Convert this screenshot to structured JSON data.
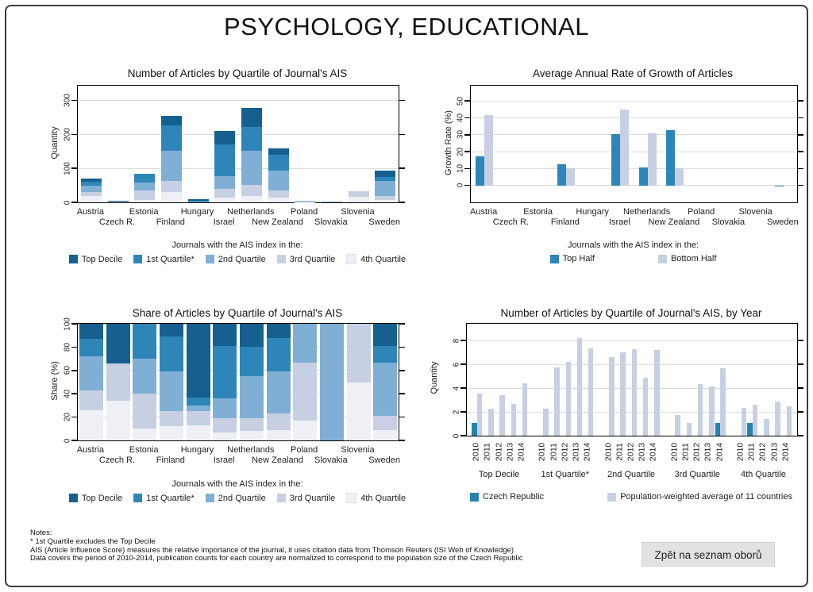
{
  "page": {
    "title": "PSYCHOLOGY, EDUCATIONAL"
  },
  "button": {
    "label": "Zpět na seznam oborů"
  },
  "notes": {
    "lines": [
      "Notes:",
      "* 1st Quartile excludes the Top Decile",
      "AIS (Article Influence Score) measures the relative importance of the journal, it uses citation data from Thomson Reuters (ISI Web of Knowledge)",
      "Data covers the period of 2010-2014, publication counts for each country are normalized to correspond to the population size of the Czech Republic"
    ]
  },
  "colors": {
    "top_decile": "#15608f",
    "first_quartile": "#2e86b8",
    "second_quartile": "#7fafd4",
    "third_quartile": "#c6d0e2",
    "fourth_quartile": "#eef0f5",
    "czech": "#2583ae",
    "grid": "#dcdcdc"
  },
  "countries": [
    "Austria",
    "Czech R.",
    "Estonia",
    "Finland",
    "Hungary",
    "Israel",
    "Netherlands",
    "New Zealand",
    "Poland",
    "Slovakia",
    "Slovenia",
    "Sweden"
  ],
  "chart_data": [
    {
      "type": "bar",
      "stacked": true,
      "title": "Number of Articles by Quartile of Journal's AIS",
      "ylabel": "Quantity",
      "ylim": [
        0,
        343
      ],
      "yticks": [
        0,
        100,
        200,
        300
      ],
      "grid": true,
      "categories": [
        "Austria",
        "Czech R.",
        "Estonia",
        "Finland",
        "Hungary",
        "Israel",
        "Netherlands",
        "New Zealand",
        "Poland",
        "Slovakia",
        "Slovenia",
        "Sweden"
      ],
      "series": [
        {
          "name": "4th Quartile",
          "color": "#eef0f5",
          "values": [
            18,
            1.7,
            8,
            30,
            1.3,
            15,
            19,
            14,
            0.7,
            0,
            16,
            8
          ]
        },
        {
          "name": "3rd Quartile",
          "color": "#c6d0e2",
          "values": [
            12,
            1.6,
            26,
            34,
            1.1,
            25,
            33,
            22,
            2,
            0,
            16,
            11
          ]
        },
        {
          "name": "2nd Quartile",
          "color": "#7fafd4",
          "values": [
            20,
            0,
            25,
            87,
            0.5,
            36,
            100,
            58,
            1.3,
            2,
            0,
            43
          ]
        },
        {
          "name": "1st Quartile*",
          "color": "#2e86b8",
          "values": [
            11,
            0,
            26,
            76,
            0.8,
            95,
            70,
            46,
            0,
            0,
            0,
            13
          ]
        },
        {
          "name": "Top Decile",
          "color": "#15608f",
          "values": [
            9,
            1.7,
            0,
            28,
            6.3,
            40,
            56,
            19,
            0,
            0,
            0,
            18
          ]
        }
      ],
      "legend": {
        "title": "Journals with the AIS index in the:",
        "items": [
          {
            "label": "Top Decile",
            "color": "#15608f"
          },
          {
            "label": "1st Quartile*",
            "color": "#2e86b8"
          },
          {
            "label": "2nd Quartile",
            "color": "#7fafd4"
          },
          {
            "label": "3rd Quartile",
            "color": "#c6d0e2"
          },
          {
            "label": "4th Quartile",
            "color": "#eef0f5"
          }
        ]
      }
    },
    {
      "type": "bar",
      "stacked": false,
      "title": "Average Annual Rate of Growth of Articles",
      "ylabel": "Growth Rate (%)",
      "ylim": [
        -10,
        59
      ],
      "yticks": [
        0,
        10,
        20,
        30,
        40,
        50
      ],
      "grid": true,
      "categories": [
        "Austria",
        "Czech R.",
        "Estonia",
        "Finland",
        "Hungary",
        "Israel",
        "Netherlands",
        "New Zealand",
        "Poland",
        "Slovakia",
        "Slovenia",
        "Sweden"
      ],
      "series": [
        {
          "name": "Top Half",
          "color": "#2e86b8",
          "values": [
            17,
            0,
            0,
            12.5,
            0,
            30.5,
            10.5,
            32.5,
            0,
            0,
            0,
            -0.8
          ]
        },
        {
          "name": "Bottom Half",
          "color": "#c6d0e2",
          "values": [
            41.5,
            0,
            0,
            10,
            0,
            45,
            31,
            10,
            0,
            0,
            0,
            0
          ]
        }
      ],
      "legend": {
        "title": "Journals with the AIS index in the:",
        "items": [
          {
            "label": "Top Half",
            "color": "#2e86b8"
          },
          {
            "label": "Bottom Half",
            "color": "#c6d0e2"
          }
        ]
      }
    },
    {
      "type": "bar",
      "stacked": true,
      "title": "Share of Articles by Quartile of Journal's AIS",
      "ylabel": "Share (%)",
      "ylim": [
        0,
        100
      ],
      "yticks": [
        0,
        20,
        40,
        60,
        80,
        100
      ],
      "grid": true,
      "categories": [
        "Austria",
        "Czech R.",
        "Estonia",
        "Finland",
        "Hungary",
        "Israel",
        "Netherlands",
        "New Zealand",
        "Poland",
        "Slovakia",
        "Slovenia",
        "Sweden"
      ],
      "series": [
        {
          "name": "4th Quartile",
          "color": "#eef0f5",
          "values": [
            26,
            34,
            10,
            12,
            13,
            7,
            8,
            9,
            17,
            0,
            50,
            9
          ]
        },
        {
          "name": "3rd Quartile",
          "color": "#c6d0e2",
          "values": [
            17,
            32,
            30,
            13,
            12,
            12,
            11,
            14,
            50,
            0,
            50,
            12
          ]
        },
        {
          "name": "2nd Quartile",
          "color": "#7fafd4",
          "values": [
            29,
            0,
            30,
            34,
            5,
            17,
            36,
            36,
            33,
            100,
            0,
            46
          ]
        },
        {
          "name": "1st Quartile*",
          "color": "#2e86b8",
          "values": [
            15,
            0,
            30,
            30,
            7,
            45,
            25,
            29,
            0,
            0,
            0,
            14
          ]
        },
        {
          "name": "Top Decile",
          "color": "#15608f",
          "values": [
            13,
            34,
            0,
            11,
            63,
            19,
            20,
            12,
            0,
            0,
            0,
            19
          ]
        }
      ],
      "legend": {
        "title": "Journals with the AIS index in the:",
        "items": [
          {
            "label": "Top Decile",
            "color": "#15608f"
          },
          {
            "label": "1st Quartile*",
            "color": "#2e86b8"
          },
          {
            "label": "2nd Quartile",
            "color": "#7fafd4"
          },
          {
            "label": "3rd Quartile",
            "color": "#c6d0e2"
          },
          {
            "label": "4th Quartile",
            "color": "#eef0f5"
          }
        ]
      }
    },
    {
      "type": "bar",
      "stacked": false,
      "grouped_by_year": true,
      "title": "Number of Articles by Quartile of Journal's AIS, by Year",
      "ylabel": "Quantity",
      "ylim": [
        0,
        9.4
      ],
      "yticks": [
        0,
        2,
        4,
        6,
        8
      ],
      "grid": true,
      "groups": [
        "Top Decile",
        "1st Quartile*",
        "2nd Quartile",
        "3rd Quartile",
        "4th Quartile"
      ],
      "years": [
        "2010",
        "2011",
        "2012",
        "2013",
        "2014"
      ],
      "series": [
        {
          "name": "Czech Republic",
          "color": "#2583ae",
          "values": [
            [
              1.05,
              0,
              0,
              0,
              0
            ],
            [
              0,
              0,
              0,
              0,
              0
            ],
            [
              0,
              0,
              0,
              0,
              0
            ],
            [
              0,
              0,
              0,
              0,
              1.05
            ],
            [
              0,
              1.05,
              0,
              0,
              0
            ]
          ]
        },
        {
          "name": "Population-weighted average of 11 countries",
          "color": "#c6d0e2",
          "values": [
            [
              3.55,
              2.3,
              3.4,
              2.7,
              4.4
            ],
            [
              2.3,
              5.75,
              6.2,
              8.2,
              7.35
            ],
            [
              6.6,
              7.0,
              7.25,
              4.85,
              7.2
            ],
            [
              1.75,
              1.05,
              4.35,
              4.15,
              5.65
            ],
            [
              2.35,
              2.6,
              1.4,
              2.85,
              2.5
            ]
          ]
        }
      ],
      "legend": {
        "title": "",
        "items": [
          {
            "label": "Czech Republic",
            "color": "#2583ae"
          },
          {
            "label": "Population-weighted average of 11 countries",
            "color": "#c6d0e2"
          }
        ]
      }
    }
  ]
}
